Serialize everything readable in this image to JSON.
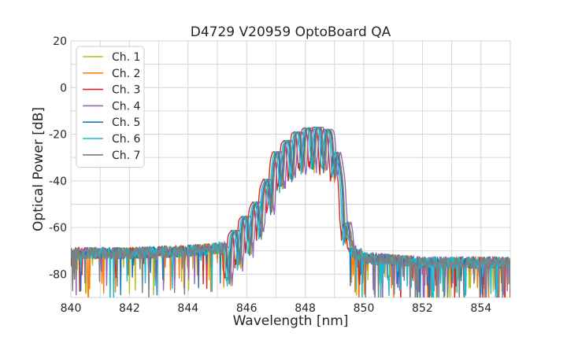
{
  "chart_data": {
    "type": "line",
    "title": "D4729 V20959 OptoBoard QA",
    "xlabel": "Wavelength [nm]",
    "ylabel": "Optical Power [dB]",
    "xlim": [
      840,
      855
    ],
    "ylim": [
      -90,
      20
    ],
    "xticks": [
      840,
      842,
      844,
      846,
      848,
      850,
      852,
      854
    ],
    "yticks": [
      -80,
      -60,
      -40,
      -20,
      0,
      20
    ],
    "grid": true,
    "legend_position": "top-left",
    "series": [
      {
        "name": "Ch. 1",
        "color": "#bcbd22",
        "shift": 0.05,
        "noise_seed": 11
      },
      {
        "name": "Ch. 2",
        "color": "#ff7f0e",
        "shift": 0.02,
        "noise_seed": 23
      },
      {
        "name": "Ch. 3",
        "color": "#d62728",
        "shift": -0.12,
        "noise_seed": 37
      },
      {
        "name": "Ch. 4",
        "color": "#9467bd",
        "shift": 0.12,
        "noise_seed": 41
      },
      {
        "name": "Ch. 5",
        "color": "#1f77b4",
        "shift": 0.0,
        "noise_seed": 53
      },
      {
        "name": "Ch. 6",
        "color": "#17becf",
        "shift": -0.05,
        "noise_seed": 67
      },
      {
        "name": "Ch. 7",
        "color": "#7f7f7f",
        "shift": 0.04,
        "noise_seed": 79
      }
    ],
    "envelope": {
      "x": [
        840,
        842,
        844,
        845.0,
        845.3,
        845.5,
        845.9,
        846.2,
        846.5,
        846.8,
        847.0,
        847.3,
        847.6,
        847.9,
        848.2,
        848.5,
        848.8,
        849.0,
        849.1,
        849.3,
        849.5,
        849.6,
        850,
        852,
        855
      ],
      "y": [
        -71,
        -71,
        -70,
        -69,
        -68,
        -63,
        -56,
        -52,
        -45,
        -36,
        -28,
        -24,
        -20,
        -18,
        -17,
        -17,
        -18,
        -21,
        -28,
        -44,
        -62,
        -70,
        -73,
        -75,
        -75
      ]
    }
  }
}
